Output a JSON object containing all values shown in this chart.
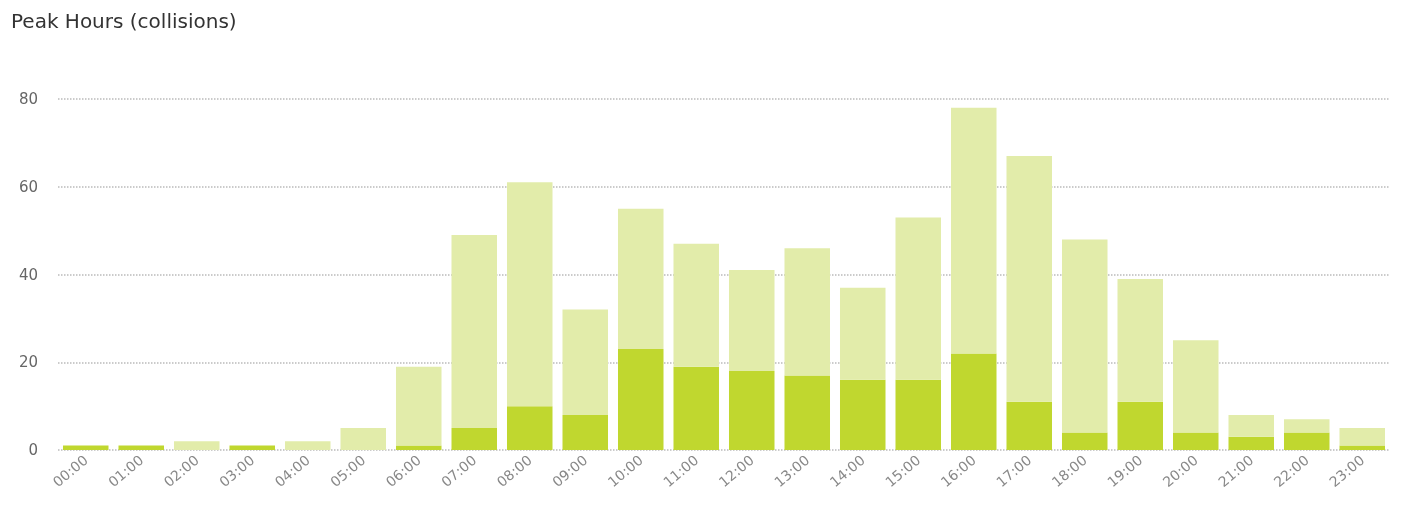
{
  "chart_data": {
    "type": "bar",
    "title": "Peak Hours (collisions)",
    "stacked": true,
    "categories": [
      "00:00",
      "01:00",
      "02:00",
      "03:00",
      "04:00",
      "05:00",
      "06:00",
      "07:00",
      "08:00",
      "09:00",
      "10:00",
      "11:00",
      "12:00",
      "13:00",
      "14:00",
      "15:00",
      "16:00",
      "17:00",
      "18:00",
      "19:00",
      "20:00",
      "21:00",
      "22:00",
      "23:00"
    ],
    "series": [
      {
        "color": "#c0d72f",
        "values": [
          1,
          1,
          0,
          1,
          0,
          0,
          1,
          5,
          10,
          8,
          23,
          19,
          18,
          17,
          16,
          16,
          22,
          11,
          4,
          11,
          4,
          3,
          4,
          1
        ]
      },
      {
        "color": "#e2ecaa",
        "values": [
          0,
          0,
          2,
          0,
          2,
          5,
          18,
          44,
          51,
          24,
          32,
          28,
          23,
          29,
          21,
          37,
          56,
          56,
          44,
          28,
          21,
          5,
          3,
          4
        ]
      }
    ],
    "ylim": [
      0,
      80
    ],
    "yticks": [
      0,
      20,
      40,
      60,
      80
    ],
    "grid": "y"
  }
}
